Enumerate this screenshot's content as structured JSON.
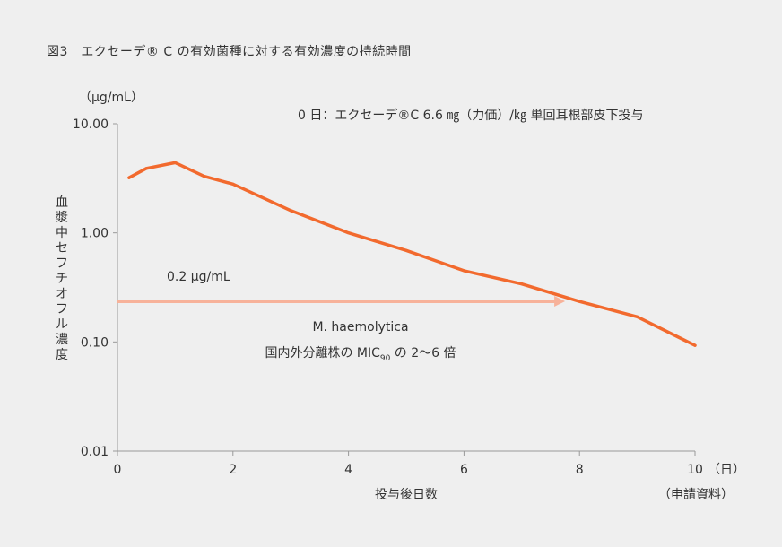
{
  "figure_title": "図3　エクセーデ® C の有効菌種に対する有効濃度の持続時間",
  "chart_data": {
    "type": "line",
    "scale_y": "log",
    "ylim": [
      0.01,
      10
    ],
    "xlim": [
      0,
      10
    ],
    "y_unit": "（μg/mL）",
    "ylabel": "血漿中セフチオフル濃度",
    "xlabel": "投与後日数",
    "x_unit": "（日）",
    "source": "（申請資料）",
    "x_ticks": [
      {
        "value": 0,
        "label": "0"
      },
      {
        "value": 2,
        "label": "2"
      },
      {
        "value": 4,
        "label": "4"
      },
      {
        "value": 6,
        "label": "6"
      },
      {
        "value": 8,
        "label": "8"
      },
      {
        "value": 10,
        "label": "10"
      }
    ],
    "y_ticks": [
      {
        "value": 10,
        "label": "10.00"
      },
      {
        "value": 1,
        "label": "1.00"
      },
      {
        "value": 0.1,
        "label": "0.10"
      },
      {
        "value": 0.01,
        "label": "0.01"
      }
    ],
    "series": [
      {
        "color": "#f26a2e",
        "points": [
          {
            "x": 0.2,
            "y": 3.2
          },
          {
            "x": 0.5,
            "y": 3.9
          },
          {
            "x": 1.0,
            "y": 4.4
          },
          {
            "x": 1.5,
            "y": 3.3
          },
          {
            "x": 2.0,
            "y": 2.8
          },
          {
            "x": 3.0,
            "y": 1.6
          },
          {
            "x": 4.0,
            "y": 1.0
          },
          {
            "x": 5.0,
            "y": 0.69
          },
          {
            "x": 6.0,
            "y": 0.45
          },
          {
            "x": 7.0,
            "y": 0.34
          },
          {
            "x": 8.0,
            "y": 0.235
          },
          {
            "x": 9.0,
            "y": 0.17
          },
          {
            "x": 10.0,
            "y": 0.093
          }
        ]
      }
    ],
    "annotations": {
      "dosing_note": "0 日：エクセーデ®C 6.6 ㎎（力価）/㎏ 単回耳根部皮下投与",
      "threshold_label": "0.2 μg/mL",
      "threshold_value": 0.2,
      "threshold_arrow_color": "#f7b29a",
      "threshold_x_end": 7.75,
      "organism": "M. haemolytica",
      "mic_text": "国内外分離株の MIC",
      "mic_sub": "90",
      "mic_suffix": " の 2〜6 倍"
    }
  }
}
